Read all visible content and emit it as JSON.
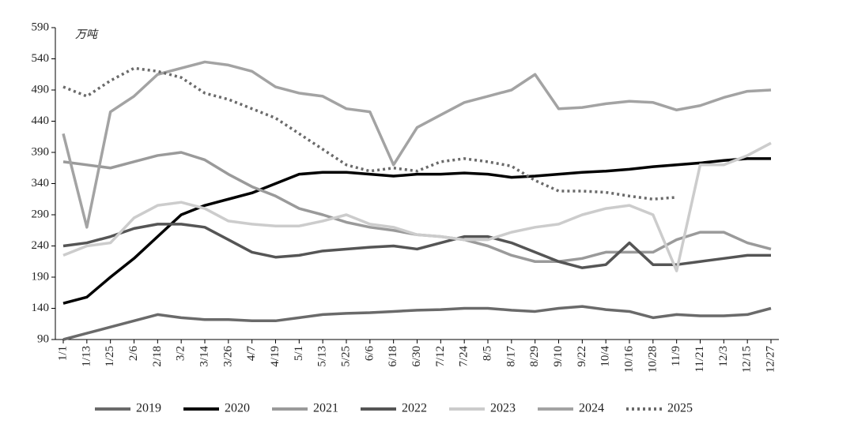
{
  "chart_data": {
    "type": "line",
    "y_unit": "万吨",
    "categories": [
      "1/1",
      "1/13",
      "1/25",
      "2/6",
      "2/18",
      "3/2",
      "3/14",
      "3/26",
      "4/7",
      "4/19",
      "5/1",
      "5/13",
      "5/25",
      "6/6",
      "6/18",
      "6/30",
      "7/12",
      "7/24",
      "8/5",
      "8/17",
      "8/29",
      "9/10",
      "9/22",
      "10/4",
      "10/16",
      "10/28",
      "11/9",
      "11/21",
      "12/3",
      "12/15",
      "12/27"
    ],
    "ylim": [
      90,
      590
    ],
    "yticks": [
      90,
      140,
      190,
      240,
      290,
      340,
      390,
      440,
      490,
      540,
      590
    ],
    "legend": "bottom",
    "series": [
      {
        "name": "2019",
        "color": "#6a6a6a",
        "style": "solid",
        "values": [
          90,
          100,
          110,
          120,
          130,
          125,
          122,
          122,
          120,
          120,
          125,
          130,
          132,
          133,
          135,
          137,
          138,
          140,
          140,
          137,
          135,
          140,
          143,
          138,
          135,
          125,
          130,
          128,
          128,
          130,
          140
        ]
      },
      {
        "name": "2020",
        "color": "#000000",
        "style": "solid",
        "values": [
          148,
          158,
          190,
          220,
          255,
          290,
          305,
          315,
          325,
          340,
          355,
          358,
          358,
          355,
          352,
          355,
          355,
          357,
          355,
          350,
          352,
          355,
          358,
          360,
          363,
          367,
          370,
          373,
          377,
          380,
          380
        ]
      },
      {
        "name": "2021",
        "color": "#9a9a9a",
        "style": "solid",
        "values": [
          375,
          370,
          365,
          375,
          385,
          390,
          378,
          355,
          335,
          320,
          300,
          290,
          278,
          270,
          265,
          258,
          255,
          250,
          240,
          225,
          215,
          215,
          220,
          230,
          230,
          230,
          250,
          262,
          262,
          245,
          235
        ]
      },
      {
        "name": "2022",
        "color": "#555555",
        "style": "solid",
        "values": [
          240,
          245,
          255,
          268,
          275,
          275,
          270,
          250,
          230,
          222,
          225,
          232,
          235,
          238,
          240,
          235,
          245,
          255,
          255,
          245,
          230,
          215,
          205,
          210,
          245,
          210,
          210,
          215,
          220,
          225,
          225
        ]
      },
      {
        "name": "2023",
        "color": "#cccccc",
        "style": "solid",
        "values": [
          225,
          240,
          245,
          285,
          305,
          310,
          300,
          280,
          275,
          272,
          272,
          280,
          290,
          275,
          270,
          258,
          255,
          250,
          250,
          262,
          270,
          275,
          290,
          300,
          305,
          290,
          200,
          370,
          370,
          385,
          405
        ]
      },
      {
        "name": "2024",
        "color": "#a3a3a3",
        "style": "solid",
        "values": [
          420,
          270,
          455,
          480,
          515,
          525,
          535,
          530,
          520,
          495,
          485,
          480,
          460,
          455,
          370,
          430,
          450,
          470,
          480,
          490,
          515,
          460,
          462,
          468,
          472,
          470,
          458,
          465,
          478,
          488,
          490
        ]
      },
      {
        "name": "2025",
        "color": "#6a6a6a",
        "style": "dotted",
        "values": [
          495,
          480,
          505,
          525,
          520,
          510,
          485,
          475,
          460,
          445,
          420,
          395,
          370,
          360,
          365,
          360,
          375,
          380,
          375,
          368,
          345,
          328,
          328,
          326,
          320,
          315,
          318,
          null,
          null,
          null,
          null
        ]
      }
    ]
  }
}
